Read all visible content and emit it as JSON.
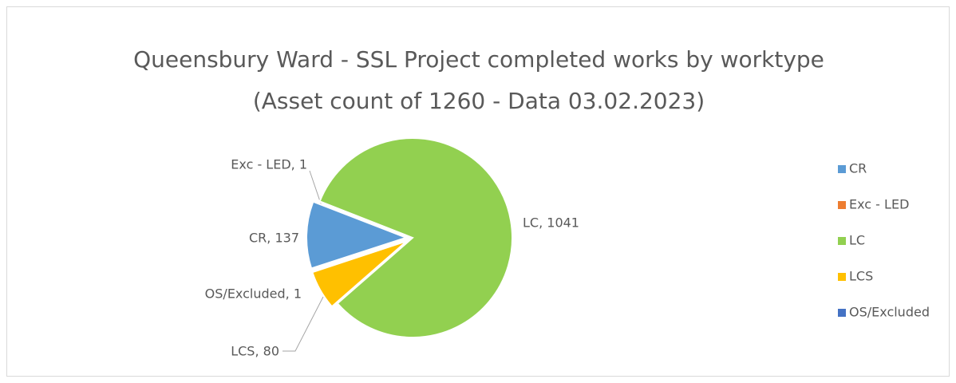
{
  "chart_data": {
    "type": "pie",
    "title": [
      "Queensbury Ward - SSL Project completed works by worktype",
      "(Asset count of 1260 - Data 03.02.2023)"
    ],
    "categories": [
      "CR",
      "Exc - LED",
      "LC",
      "LCS",
      "OS/Excluded"
    ],
    "values": [
      137,
      1,
      1041,
      80,
      1
    ],
    "value_labels": [
      "CR, 137",
      "Exc - LED, 1",
      "LC, 1041",
      "LCS, 80",
      "OS/Excluded, 1"
    ],
    "colors": [
      "#5b9bd5",
      "#ed7d31",
      "#92d050",
      "#ffc000",
      "#4472c4"
    ],
    "legend": "right"
  }
}
